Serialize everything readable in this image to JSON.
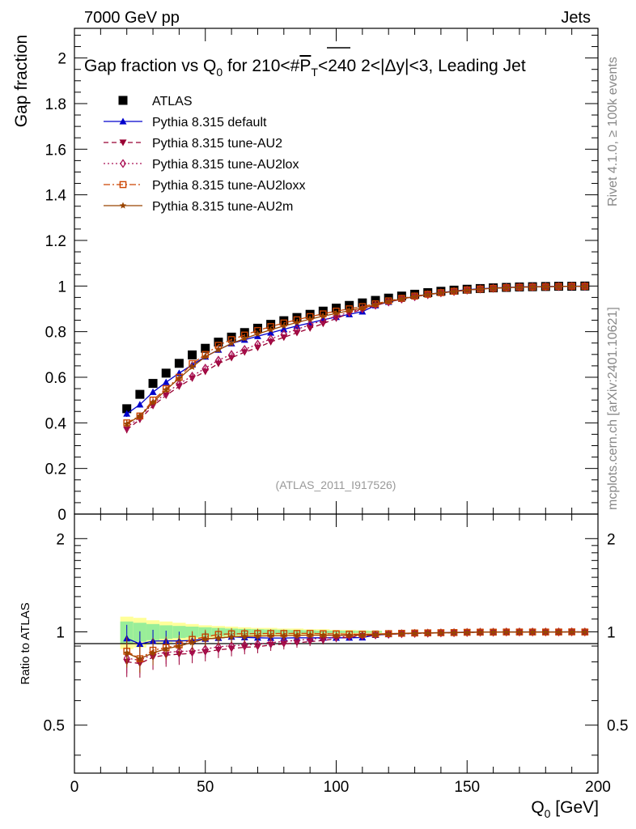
{
  "header": {
    "left": "7000 GeV pp",
    "right": "Jets"
  },
  "side_labels": {
    "rivet": "Rivet 4.1.0, ≥ 100k events",
    "mcplots": "mcplots.cern.ch [arXiv:2401.10621]"
  },
  "colors": {
    "atlas": "#000000",
    "default": "#0000cc",
    "au2": "#990033",
    "au2lox": "#aa1155",
    "au2loxx": "#cc4400",
    "au2m": "#994400",
    "band_yellow": "#ffff99",
    "band_green": "#99ee99"
  },
  "chart_data": [
    {
      "type": "scatter",
      "panel": "main",
      "title": "Gap fraction vs Q0 for 210<#PT<240  2<|Δy|<3, Leading Jet",
      "title_parts": {
        "a": "Gap fraction vs Q",
        "sub": "0",
        "b": " for 210<#",
        "c": "P",
        "csub": "T",
        "d": "<240  2<|Δy|<3, Leading Jet"
      },
      "ylabel": "Gap fraction",
      "watermark": "(ATLAS_2011_I917526)",
      "xlim": [
        0,
        200
      ],
      "ylim": [
        0,
        2.13
      ],
      "yticks": [
        "0",
        "0.2",
        "0.4",
        "0.6",
        "0.8",
        "1",
        "1.2",
        "1.4",
        "1.6",
        "1.8",
        "2"
      ],
      "x": [
        20,
        25,
        30,
        35,
        40,
        45,
        50,
        55,
        60,
        65,
        70,
        75,
        80,
        85,
        90,
        95,
        100,
        105,
        110,
        115,
        120,
        125,
        130,
        135,
        140,
        145,
        150,
        155,
        160,
        165,
        170,
        175,
        180,
        185,
        190,
        195
      ],
      "series": [
        {
          "key": "atlas",
          "name": "ATLAS",
          "marker": "square-filled",
          "line": "none",
          "values": [
            0.462,
            0.525,
            0.573,
            0.618,
            0.661,
            0.698,
            0.727,
            0.754,
            0.776,
            0.796,
            0.815,
            0.832,
            0.848,
            0.862,
            0.876,
            0.89,
            0.903,
            0.915,
            0.926,
            0.937,
            0.947,
            0.956,
            0.964,
            0.971,
            0.977,
            0.982,
            0.986,
            0.989,
            0.992,
            0.994,
            0.996,
            0.997,
            0.998,
            0.999,
            0.999,
            1.0
          ]
        },
        {
          "key": "default",
          "name": "Pythia 8.315 default",
          "marker": "triangle-up",
          "line": "solid",
          "values": [
            0.44,
            0.48,
            0.535,
            0.578,
            0.618,
            0.655,
            0.69,
            0.72,
            0.748,
            0.764,
            0.78,
            0.795,
            0.81,
            0.825,
            0.838,
            0.852,
            0.864,
            0.876,
            0.888,
            0.915,
            0.93,
            0.943,
            0.955,
            0.964,
            0.971,
            0.978,
            0.984,
            0.988,
            0.991,
            0.994,
            0.996,
            0.997,
            0.998,
            0.999,
            0.999,
            1.0
          ]
        },
        {
          "key": "au2",
          "name": "Pythia 8.315 tune-AU2",
          "marker": "triangle-down",
          "line": "dashed",
          "values": [
            0.37,
            0.415,
            0.475,
            0.52,
            0.56,
            0.595,
            0.625,
            0.66,
            0.685,
            0.71,
            0.73,
            0.755,
            0.775,
            0.795,
            0.815,
            0.835,
            0.858,
            0.88,
            0.898,
            0.915,
            0.93,
            0.943,
            0.953,
            0.962,
            0.97,
            0.976,
            0.982,
            0.987,
            0.99,
            0.993,
            0.995,
            0.996,
            0.997,
            0.998,
            0.999,
            0.999
          ]
        },
        {
          "key": "au2lox",
          "name": "Pythia 8.315 tune-AU2lox",
          "marker": "diamond-open",
          "line": "dotted",
          "values": [
            0.38,
            0.425,
            0.485,
            0.53,
            0.572,
            0.605,
            0.64,
            0.675,
            0.7,
            0.722,
            0.745,
            0.768,
            0.79,
            0.81,
            0.83,
            0.85,
            0.868,
            0.885,
            0.9,
            0.916,
            0.93,
            0.943,
            0.953,
            0.962,
            0.97,
            0.976,
            0.982,
            0.987,
            0.99,
            0.993,
            0.995,
            0.996,
            0.997,
            0.998,
            0.999,
            0.999
          ]
        },
        {
          "key": "au2loxx",
          "name": "Pythia 8.315 tune-AU2loxx",
          "marker": "square-open",
          "line": "dashdot",
          "values": [
            0.4,
            0.43,
            0.5,
            0.55,
            0.6,
            0.66,
            0.7,
            0.74,
            0.765,
            0.785,
            0.805,
            0.822,
            0.838,
            0.852,
            0.866,
            0.878,
            0.89,
            0.9,
            0.91,
            0.922,
            0.935,
            0.946,
            0.956,
            0.964,
            0.971,
            0.977,
            0.983,
            0.987,
            0.99,
            0.993,
            0.995,
            0.996,
            0.997,
            0.998,
            0.999,
            0.999
          ]
        },
        {
          "key": "au2m",
          "name": "Pythia 8.315 tune-AU2m",
          "marker": "star",
          "line": "solid",
          "values": [
            0.395,
            0.43,
            0.49,
            0.545,
            0.595,
            0.645,
            0.69,
            0.72,
            0.748,
            0.77,
            0.79,
            0.808,
            0.825,
            0.84,
            0.855,
            0.868,
            0.88,
            0.892,
            0.903,
            0.918,
            0.932,
            0.944,
            0.954,
            0.963,
            0.97,
            0.976,
            0.982,
            0.987,
            0.99,
            0.993,
            0.995,
            0.996,
            0.997,
            0.998,
            0.999,
            0.999
          ]
        }
      ]
    },
    {
      "type": "scatter",
      "panel": "ratio",
      "ylabel": "Ratio to ATLAS",
      "xlabel": "Q0 [GeV]",
      "xlabel_parts": {
        "a": "Q",
        "sub": "0",
        "b": " [GeV]"
      },
      "xlim": [
        0,
        200
      ],
      "ylim": [
        0.35,
        2.4
      ],
      "xticks": [
        "0",
        "50",
        "100",
        "150",
        "200"
      ],
      "yticks_left": [
        "0.5",
        "1",
        "2"
      ],
      "yticks_right": [
        "0.5",
        "1",
        "2"
      ],
      "atlas_band": {
        "x_edges": [
          17.5,
          22.5,
          27.5,
          32.5,
          37.5,
          42.5,
          47.5,
          52.5,
          57.5,
          62.5,
          67.5,
          72.5,
          77.5,
          82.5,
          87.5,
          92.5,
          97.5,
          102.5,
          107.5,
          112.5,
          117.5
        ],
        "yellow_halfwidth": [
          0.12,
          0.11,
          0.09,
          0.08,
          0.07,
          0.06,
          0.05,
          0.045,
          0.04,
          0.035,
          0.03,
          0.03,
          0.025,
          0.025,
          0.02,
          0.02,
          0.015,
          0.015,
          0.012,
          0.01
        ],
        "green_halfwidth": [
          0.08,
          0.07,
          0.06,
          0.05,
          0.045,
          0.04,
          0.035,
          0.03,
          0.025,
          0.022,
          0.02,
          0.018,
          0.016,
          0.014,
          0.012,
          0.01,
          0.009,
          0.008,
          0.007,
          0.006
        ]
      }
    }
  ]
}
